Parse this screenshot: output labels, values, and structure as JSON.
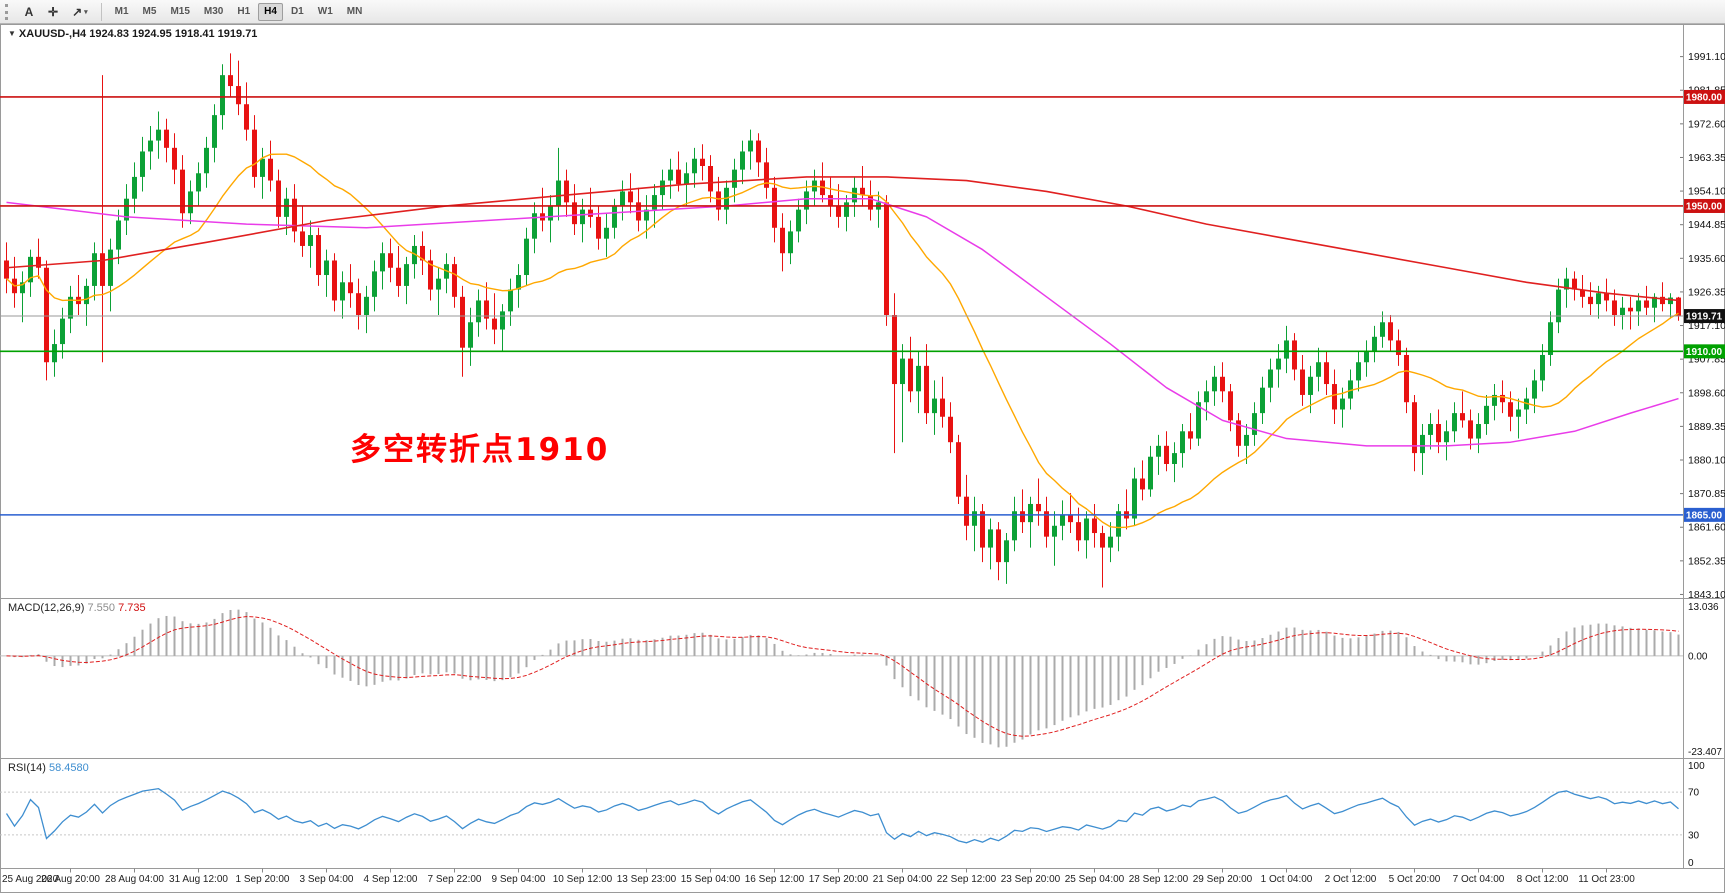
{
  "toolbar": {
    "buttons": [
      {
        "name": "text-tool",
        "label": "A"
      },
      {
        "name": "crosshair-tool",
        "label": "✛"
      },
      {
        "name": "draw-tool",
        "label": "↗"
      }
    ],
    "dropdown_caret": "▾",
    "timeframes": [
      "M1",
      "M5",
      "M15",
      "M30",
      "H1",
      "H4",
      "D1",
      "W1",
      "MN"
    ],
    "selected_timeframe": "H4"
  },
  "chart": {
    "header_marker": "▼",
    "header": "XAUUSD-,H4 1924.83 1924.95 1918.41 1919.71",
    "annotation": {
      "text": "多空转折点1910",
      "color": "#FE0000"
    },
    "colors": {
      "up": "#0CA136",
      "down": "#E81212",
      "bid_line": "#9a9a9a",
      "ma_fast": "#FFA800",
      "ma_mid": "#E93CE9",
      "ma_slow": "#E02020"
    },
    "price_range": {
      "top": 1999.8,
      "bottom": 1842.4
    },
    "price_axis": [
      1991.1,
      1981.85,
      1972.6,
      1963.35,
      1954.1,
      1944.85,
      1935.6,
      1926.35,
      1917.1,
      1907.85,
      1898.6,
      1889.35,
      1880.1,
      1870.85,
      1861.6,
      1852.35,
      1843.1
    ],
    "hlines": [
      {
        "price": 1980.0,
        "label": "1980.00",
        "color": "#CC1111"
      },
      {
        "price": 1950.0,
        "label": "1950.00",
        "color": "#CC1111"
      },
      {
        "price": 1910.0,
        "label": "1910.00",
        "color": "#00A100"
      },
      {
        "price": 1865.0,
        "label": "1865.00",
        "color": "#2A5FD0"
      }
    ],
    "bid": {
      "price": 1919.71,
      "label": "1919.71"
    },
    "ma_fast_period": 20,
    "ma_mid_points": [
      [
        0,
        1951
      ],
      [
        15,
        1947
      ],
      [
        30,
        1945
      ],
      [
        45,
        1944
      ],
      [
        60,
        1946
      ],
      [
        75,
        1948
      ],
      [
        90,
        1950
      ],
      [
        100,
        1952
      ],
      [
        108,
        1952
      ],
      [
        115,
        1947
      ],
      [
        122,
        1938
      ],
      [
        130,
        1925
      ],
      [
        138,
        1912
      ],
      [
        145,
        1900
      ],
      [
        152,
        1891
      ],
      [
        160,
        1886
      ],
      [
        170,
        1884
      ],
      [
        180,
        1884
      ],
      [
        188,
        1885
      ],
      [
        196,
        1888
      ],
      [
        203,
        1893
      ],
      [
        209,
        1897
      ]
    ],
    "ma_slow_points": [
      [
        0,
        1933
      ],
      [
        12,
        1935
      ],
      [
        25,
        1940
      ],
      [
        40,
        1946
      ],
      [
        55,
        1950
      ],
      [
        70,
        1953
      ],
      [
        85,
        1956
      ],
      [
        100,
        1958
      ],
      [
        110,
        1958
      ],
      [
        120,
        1957
      ],
      [
        130,
        1954
      ],
      [
        140,
        1950
      ],
      [
        150,
        1945
      ],
      [
        160,
        1941
      ],
      [
        170,
        1937
      ],
      [
        180,
        1933
      ],
      [
        190,
        1929
      ],
      [
        200,
        1926
      ],
      [
        209,
        1924
      ]
    ],
    "candles": [
      [
        1935,
        1940,
        1926,
        1930
      ],
      [
        1930,
        1936,
        1922,
        1926
      ],
      [
        1926,
        1932,
        1918,
        1929
      ],
      [
        1929,
        1938,
        1925,
        1936
      ],
      [
        1936,
        1941,
        1930,
        1933
      ],
      [
        1933,
        1935,
        1902,
        1907
      ],
      [
        1907,
        1916,
        1903,
        1912
      ],
      [
        1912,
        1922,
        1908,
        1919
      ],
      [
        1919,
        1928,
        1915,
        1925
      ],
      [
        1925,
        1931,
        1920,
        1923
      ],
      [
        1923,
        1930,
        1917,
        1928
      ],
      [
        1928,
        1940,
        1924,
        1937
      ],
      [
        1937,
        1986,
        1907,
        1928
      ],
      [
        1928,
        1941,
        1921,
        1938
      ],
      [
        1938,
        1949,
        1934,
        1946
      ],
      [
        1946,
        1956,
        1942,
        1952
      ],
      [
        1952,
        1962,
        1948,
        1958
      ],
      [
        1958,
        1969,
        1954,
        1965
      ],
      [
        1965,
        1972,
        1960,
        1968
      ],
      [
        1968,
        1976,
        1963,
        1971
      ],
      [
        1971,
        1974,
        1962,
        1966
      ],
      [
        1966,
        1970,
        1956,
        1960
      ],
      [
        1960,
        1964,
        1944,
        1948
      ],
      [
        1948,
        1957,
        1945,
        1954
      ],
      [
        1954,
        1962,
        1950,
        1959
      ],
      [
        1959,
        1969,
        1955,
        1966
      ],
      [
        1966,
        1978,
        1962,
        1975
      ],
      [
        1975,
        1989,
        1971,
        1986
      ],
      [
        1986,
        1992,
        1980,
        1983
      ],
      [
        1983,
        1990,
        1975,
        1978
      ],
      [
        1978,
        1984,
        1968,
        1971
      ],
      [
        1971,
        1975,
        1955,
        1958
      ],
      [
        1958,
        1966,
        1952,
        1963
      ],
      [
        1963,
        1968,
        1954,
        1957
      ],
      [
        1957,
        1960,
        1944,
        1947
      ],
      [
        1947,
        1955,
        1942,
        1952
      ],
      [
        1952,
        1956,
        1940,
        1943
      ],
      [
        1943,
        1950,
        1936,
        1939
      ],
      [
        1939,
        1946,
        1933,
        1942
      ],
      [
        1942,
        1944,
        1928,
        1931
      ],
      [
        1931,
        1938,
        1925,
        1935
      ],
      [
        1935,
        1937,
        1921,
        1924
      ],
      [
        1924,
        1932,
        1919,
        1929
      ],
      [
        1929,
        1934,
        1922,
        1926
      ],
      [
        1926,
        1930,
        1916,
        1920
      ],
      [
        1920,
        1928,
        1915,
        1925
      ],
      [
        1925,
        1935,
        1921,
        1932
      ],
      [
        1932,
        1940,
        1927,
        1937
      ],
      [
        1937,
        1941,
        1929,
        1933
      ],
      [
        1933,
        1939,
        1925,
        1928
      ],
      [
        1928,
        1936,
        1923,
        1934
      ],
      [
        1934,
        1942,
        1930,
        1939
      ],
      [
        1939,
        1943,
        1931,
        1935
      ],
      [
        1935,
        1938,
        1924,
        1927
      ],
      [
        1927,
        1933,
        1920,
        1930
      ],
      [
        1930,
        1937,
        1926,
        1934
      ],
      [
        1934,
        1936,
        1922,
        1925
      ],
      [
        1925,
        1928,
        1903,
        1911
      ],
      [
        1911,
        1922,
        1906,
        1918
      ],
      [
        1918,
        1927,
        1914,
        1924
      ],
      [
        1924,
        1929,
        1916,
        1919
      ],
      [
        1919,
        1926,
        1912,
        1916
      ],
      [
        1916,
        1923,
        1910,
        1921
      ],
      [
        1921,
        1930,
        1917,
        1927
      ],
      [
        1927,
        1934,
        1922,
        1931
      ],
      [
        1931,
        1944,
        1928,
        1941
      ],
      [
        1941,
        1951,
        1937,
        1948
      ],
      [
        1948,
        1955,
        1943,
        1946
      ],
      [
        1946,
        1953,
        1940,
        1950
      ],
      [
        1950,
        1966,
        1946,
        1957
      ],
      [
        1957,
        1960,
        1947,
        1951
      ],
      [
        1951,
        1956,
        1942,
        1945
      ],
      [
        1945,
        1952,
        1940,
        1949
      ],
      [
        1949,
        1955,
        1944,
        1947
      ],
      [
        1947,
        1950,
        1938,
        1941
      ],
      [
        1941,
        1948,
        1936,
        1944
      ],
      [
        1944,
        1952,
        1941,
        1950
      ],
      [
        1950,
        1957,
        1946,
        1954
      ],
      [
        1954,
        1959,
        1948,
        1951
      ],
      [
        1951,
        1955,
        1943,
        1946
      ],
      [
        1946,
        1953,
        1941,
        1949
      ],
      [
        1949,
        1956,
        1944,
        1953
      ],
      [
        1953,
        1960,
        1949,
        1957
      ],
      [
        1957,
        1963,
        1952,
        1960
      ],
      [
        1960,
        1965,
        1954,
        1956
      ],
      [
        1956,
        1962,
        1950,
        1959
      ],
      [
        1959,
        1966,
        1955,
        1963
      ],
      [
        1963,
        1967,
        1957,
        1961
      ],
      [
        1961,
        1964,
        1951,
        1954
      ],
      [
        1954,
        1958,
        1946,
        1949
      ],
      [
        1949,
        1957,
        1945,
        1955
      ],
      [
        1955,
        1963,
        1951,
        1960
      ],
      [
        1960,
        1968,
        1956,
        1965
      ],
      [
        1965,
        1971,
        1960,
        1968
      ],
      [
        1968,
        1970,
        1958,
        1962
      ],
      [
        1962,
        1966,
        1952,
        1955
      ],
      [
        1955,
        1958,
        1940,
        1944
      ],
      [
        1944,
        1948,
        1932,
        1937
      ],
      [
        1937,
        1946,
        1934,
        1943
      ],
      [
        1943,
        1952,
        1940,
        1949
      ],
      [
        1949,
        1957,
        1945,
        1954
      ],
      [
        1954,
        1960,
        1950,
        1957
      ],
      [
        1957,
        1962,
        1951,
        1953
      ],
      [
        1953,
        1958,
        1947,
        1950
      ],
      [
        1950,
        1956,
        1944,
        1947
      ],
      [
        1947,
        1953,
        1943,
        1951
      ],
      [
        1951,
        1958,
        1947,
        1955
      ],
      [
        1955,
        1961,
        1950,
        1953
      ],
      [
        1953,
        1957,
        1946,
        1949
      ],
      [
        1949,
        1954,
        1944,
        1951
      ],
      [
        1951,
        1953,
        1917,
        1920
      ],
      [
        1920,
        1926,
        1882,
        1901
      ],
      [
        1901,
        1912,
        1885,
        1908
      ],
      [
        1908,
        1914,
        1896,
        1899
      ],
      [
        1899,
        1910,
        1893,
        1906
      ],
      [
        1906,
        1912,
        1890,
        1893
      ],
      [
        1893,
        1902,
        1887,
        1897
      ],
      [
        1897,
        1903,
        1889,
        1892
      ],
      [
        1892,
        1896,
        1882,
        1885
      ],
      [
        1885,
        1887,
        1868,
        1870
      ],
      [
        1870,
        1876,
        1858,
        1862
      ],
      [
        1862,
        1870,
        1855,
        1866
      ],
      [
        1866,
        1868,
        1852,
        1856
      ],
      [
        1856,
        1864,
        1850,
        1861
      ],
      [
        1861,
        1863,
        1847,
        1852
      ],
      [
        1852,
        1860,
        1846,
        1858
      ],
      [
        1858,
        1870,
        1855,
        1866
      ],
      [
        1866,
        1872,
        1860,
        1863
      ],
      [
        1863,
        1870,
        1856,
        1868
      ],
      [
        1868,
        1875,
        1862,
        1866
      ],
      [
        1866,
        1870,
        1856,
        1859
      ],
      [
        1859,
        1866,
        1851,
        1862
      ],
      [
        1862,
        1869,
        1858,
        1865
      ],
      [
        1865,
        1871,
        1860,
        1863
      ],
      [
        1863,
        1867,
        1855,
        1858
      ],
      [
        1858,
        1866,
        1853,
        1864
      ],
      [
        1864,
        1868,
        1856,
        1860
      ],
      [
        1860,
        1862,
        1845,
        1856
      ],
      [
        1856,
        1863,
        1852,
        1859
      ],
      [
        1859,
        1868,
        1855,
        1866
      ],
      [
        1866,
        1872,
        1861,
        1864
      ],
      [
        1864,
        1878,
        1862,
        1875
      ],
      [
        1875,
        1880,
        1869,
        1872
      ],
      [
        1872,
        1884,
        1870,
        1881
      ],
      [
        1881,
        1887,
        1876,
        1884
      ],
      [
        1884,
        1888,
        1877,
        1879
      ],
      [
        1879,
        1885,
        1874,
        1882
      ],
      [
        1882,
        1890,
        1878,
        1888
      ],
      [
        1888,
        1893,
        1883,
        1886
      ],
      [
        1886,
        1899,
        1884,
        1896
      ],
      [
        1896,
        1902,
        1891,
        1899
      ],
      [
        1899,
        1906,
        1895,
        1903
      ],
      [
        1903,
        1907,
        1896,
        1899
      ],
      [
        1899,
        1901,
        1888,
        1891
      ],
      [
        1891,
        1893,
        1881,
        1884
      ],
      [
        1884,
        1890,
        1879,
        1887
      ],
      [
        1887,
        1896,
        1884,
        1893
      ],
      [
        1893,
        1903,
        1890,
        1900
      ],
      [
        1900,
        1908,
        1896,
        1905
      ],
      [
        1905,
        1912,
        1900,
        1908
      ],
      [
        1908,
        1917,
        1904,
        1913
      ],
      [
        1913,
        1915,
        1902,
        1905
      ],
      [
        1905,
        1909,
        1895,
        1898
      ],
      [
        1898,
        1906,
        1893,
        1903
      ],
      [
        1903,
        1911,
        1899,
        1907
      ],
      [
        1907,
        1910,
        1898,
        1901
      ],
      [
        1901,
        1905,
        1890,
        1894
      ],
      [
        1894,
        1900,
        1889,
        1897
      ],
      [
        1897,
        1905,
        1894,
        1902
      ],
      [
        1902,
        1910,
        1899,
        1907
      ],
      [
        1907,
        1913,
        1903,
        1910
      ],
      [
        1910,
        1917,
        1907,
        1914
      ],
      [
        1914,
        1921,
        1911,
        1918
      ],
      [
        1918,
        1920,
        1910,
        1913
      ],
      [
        1913,
        1916,
        1906,
        1909
      ],
      [
        1909,
        1911,
        1893,
        1896
      ],
      [
        1896,
        1898,
        1877,
        1882
      ],
      [
        1882,
        1890,
        1876,
        1887
      ],
      [
        1887,
        1893,
        1883,
        1890
      ],
      [
        1890,
        1894,
        1882,
        1885
      ],
      [
        1885,
        1891,
        1880,
        1888
      ],
      [
        1888,
        1896,
        1885,
        1893
      ],
      [
        1893,
        1899,
        1889,
        1891
      ],
      [
        1891,
        1894,
        1883,
        1886
      ],
      [
        1886,
        1893,
        1882,
        1890
      ],
      [
        1890,
        1898,
        1887,
        1895
      ],
      [
        1895,
        1901,
        1891,
        1898
      ],
      [
        1898,
        1902,
        1893,
        1896
      ],
      [
        1896,
        1899,
        1888,
        1892
      ],
      [
        1892,
        1897,
        1886,
        1894
      ],
      [
        1894,
        1900,
        1890,
        1897
      ],
      [
        1897,
        1905,
        1893,
        1902
      ],
      [
        1902,
        1912,
        1899,
        1909
      ],
      [
        1909,
        1921,
        1906,
        1918
      ],
      [
        1918,
        1930,
        1915,
        1927
      ],
      [
        1927,
        1933,
        1922,
        1930
      ],
      [
        1930,
        1932,
        1924,
        1927
      ],
      [
        1927,
        1931,
        1922,
        1925
      ],
      [
        1925,
        1929,
        1920,
        1923
      ],
      [
        1923,
        1928,
        1919,
        1926
      ],
      [
        1926,
        1930,
        1921,
        1924
      ],
      [
        1924,
        1927,
        1917,
        1920
      ],
      [
        1920,
        1925,
        1916,
        1922
      ],
      [
        1922,
        1925,
        1916,
        1921
      ],
      [
        1921,
        1926,
        1917,
        1924
      ],
      [
        1924,
        1928,
        1920,
        1922
      ],
      [
        1922,
        1926,
        1918,
        1925
      ],
      [
        1925,
        1929,
        1921,
        1923
      ],
      [
        1923,
        1926,
        1919,
        1924.8
      ],
      [
        1924.8,
        1925,
        1918.4,
        1919.7
      ]
    ]
  },
  "macd": {
    "name": "MACD(12,26,9)",
    "value_main": "7.550",
    "value_signal": "7.735",
    "fast": 12,
    "slow": 26,
    "signal": 9,
    "scale_labels": [
      "13.036",
      "0.00",
      "-23.407"
    ],
    "colors": {
      "histogram": "#ABABAB",
      "signal": "#E02020"
    }
  },
  "rsi": {
    "name": "RSI(14)",
    "value": "58.4580",
    "period": 14,
    "levels": [
      70,
      30
    ],
    "scale_labels": [
      "100",
      "70",
      "30",
      "0"
    ],
    "color": "#3E8ED0"
  },
  "time_axis": {
    "labels": [
      "25 Aug 2020",
      "26 Aug 20:00",
      "28 Aug 04:00",
      "31 Aug 12:00",
      "1 Sep 20:00",
      "3 Sep 04:00",
      "4 Sep 12:00",
      "7 Sep 22:00",
      "9 Sep 04:00",
      "10 Sep 12:00",
      "13 Sep 23:00",
      "15 Sep 04:00",
      "16 Sep 12:00",
      "17 Sep 20:00",
      "21 Sep 04:00",
      "22 Sep 12:00",
      "23 Sep 20:00",
      "25 Sep 04:00",
      "28 Sep 12:00",
      "29 Sep 20:00",
      "1 Oct 04:00",
      "2 Oct 12:00",
      "5 Oct 20:00",
      "7 Oct 04:00",
      "8 Oct 12:00",
      "11 Oct 23:00"
    ]
  }
}
